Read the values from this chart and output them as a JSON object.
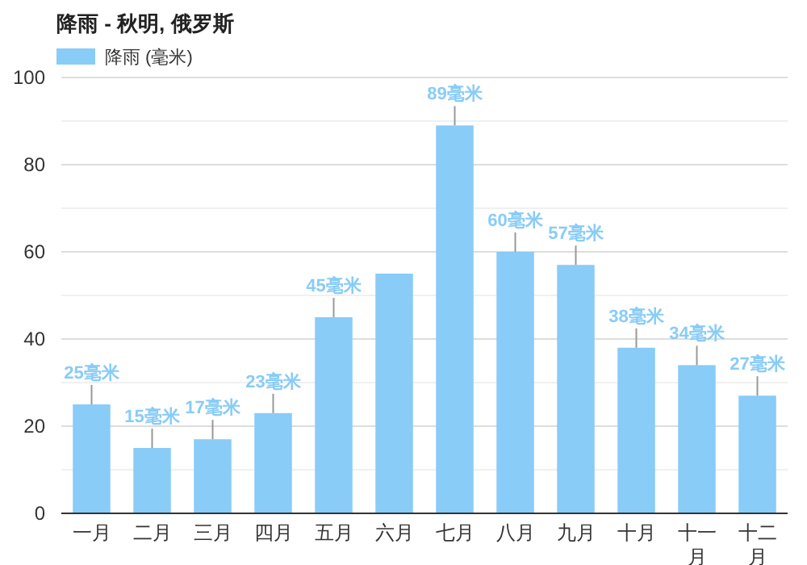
{
  "chart_data": {
    "type": "bar",
    "title": "降雨 - 秋明, 俄罗斯",
    "categories": [
      "一月",
      "二月",
      "三月",
      "四月",
      "五月",
      "六月",
      "七月",
      "八月",
      "九月",
      "十月",
      "十一月",
      "十二月"
    ],
    "series": [
      {
        "name": "降雨 (毫米)",
        "color": "#88ccf7",
        "values": [
          25,
          15,
          17,
          23,
          45,
          55,
          89,
          60,
          57,
          38,
          34,
          27
        ],
        "value_labels": [
          "25毫米",
          "15毫米",
          "17毫米",
          "23毫米",
          "45毫米",
          null,
          "89毫米",
          "60毫米",
          "57毫米",
          "38毫米",
          "34毫米",
          "27毫米"
        ]
      }
    ],
    "ylim": [
      0,
      100
    ],
    "yticks": [
      0,
      {
        "value": 10,
        "label": null
      },
      20,
      {
        "value": 30,
        "label": null
      },
      40,
      {
        "value": 50,
        "label": null
      },
      60,
      {
        "value": 70,
        "label": null
      },
      80,
      {
        "value": 90,
        "label": null
      },
      100
    ],
    "grid": "y",
    "legend": "top left"
  }
}
